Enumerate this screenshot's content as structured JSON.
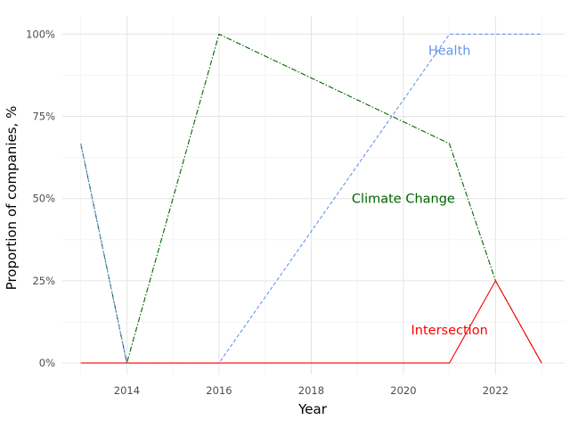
{
  "chart_data": {
    "type": "line",
    "title": "",
    "xlabel": "Year",
    "ylabel": "Proportion of companies, %",
    "xlim": [
      2012.6,
      2023.5
    ],
    "ylim": [
      -0.035,
      1.055
    ],
    "x_ticks": [
      2014,
      2016,
      2018,
      2020,
      2022
    ],
    "x_tick_labels": [
      "2014",
      "2016",
      "2018",
      "2020",
      "2022"
    ],
    "y_ticks": [
      0,
      0.25,
      0.5,
      0.75,
      1.0
    ],
    "y_tick_labels": [
      "0%",
      "25%",
      "50%",
      "75%",
      "100%"
    ],
    "grid": true,
    "legend": "none",
    "series": [
      {
        "name": "Climate Change",
        "color": "#006400",
        "dash": "dashdot",
        "x": [
          2013,
          2014,
          2016,
          2021,
          2022,
          2023
        ],
        "y": [
          0.667,
          0,
          1.0,
          0.667,
          0.25,
          0
        ],
        "label_pos": [
          2020,
          0.5
        ]
      },
      {
        "name": "Health",
        "color": "#6495ED",
        "dash": "dashed",
        "x": [
          2013,
          2014,
          2016,
          2021,
          2022,
          2023
        ],
        "y": [
          0.667,
          0,
          0,
          1.0,
          1.0,
          1.0
        ],
        "label_pos": [
          2021,
          0.95
        ]
      },
      {
        "name": "Intersection",
        "color": "#FF0000",
        "dash": "solid",
        "x": [
          2013,
          2014,
          2016,
          2021,
          2022,
          2023
        ],
        "y": [
          0,
          0,
          0,
          0,
          0.25,
          0
        ],
        "label_pos": [
          2021,
          0.1
        ]
      }
    ]
  }
}
